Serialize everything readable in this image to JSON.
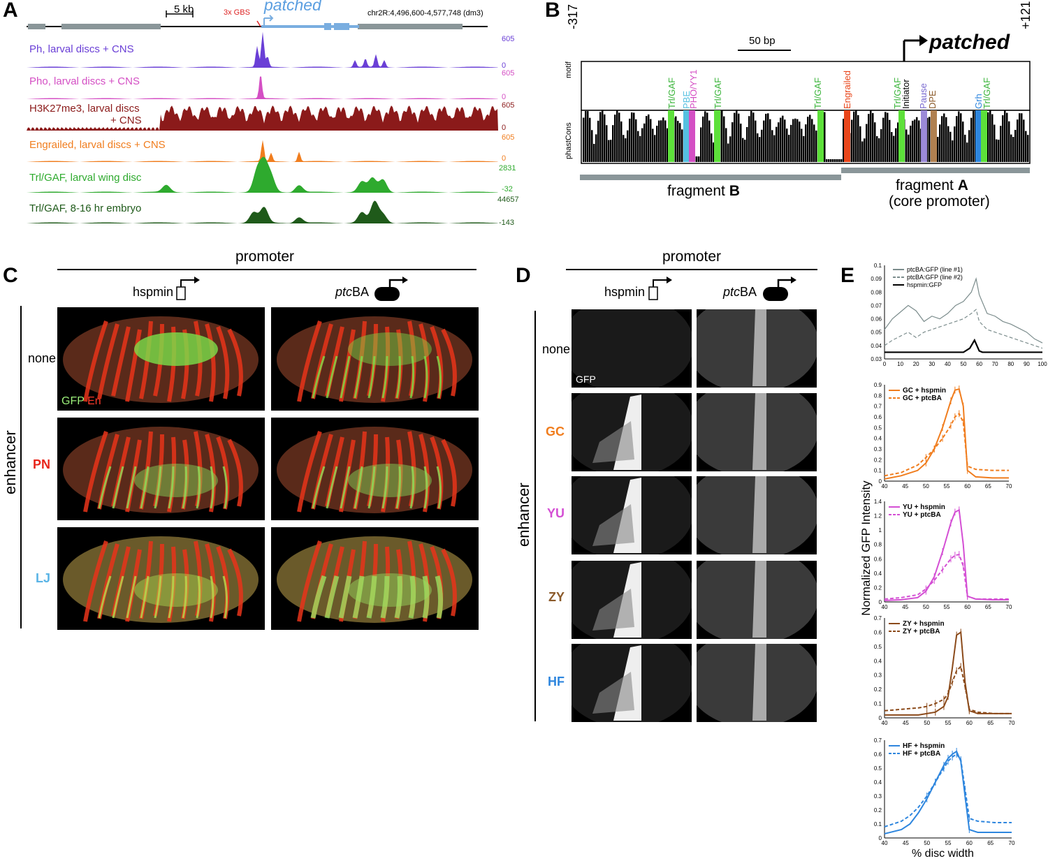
{
  "panelA": {
    "letter": "A",
    "scalebar": "5 kb",
    "gbs": "3x GBS",
    "gene": "patched",
    "coords": "chr2R:4,496,600-4,577,748 (dm3)",
    "tracks": [
      {
        "label": "Ph, larval discs + CNS",
        "color": "#6a3fd6",
        "max": "605",
        "min": "0"
      },
      {
        "label": "Pho, larval discs + CNS",
        "color": "#d44fc4",
        "max": "605",
        "min": "0"
      },
      {
        "label": "H3K27me3, larval discs",
        "label2": "+ CNS",
        "color": "#8b1a1a",
        "max": "605",
        "min": "0"
      },
      {
        "label": "Engrailed, larval discs + CNS",
        "color": "#f07d1e",
        "max": "605",
        "min": "0"
      },
      {
        "label": "Trl/GAF, larval wing disc",
        "color": "#2eaa2e",
        "max": "2831",
        "min": "-32"
      },
      {
        "label": "Trl/GAF, 8-16 hr embryo",
        "color": "#1f5a1a",
        "max": "44657",
        "min": "-143"
      }
    ]
  },
  "panelB": {
    "letter": "B",
    "left_coord": "-317",
    "right_coord": "+121",
    "scalebar": "50 bp",
    "gene": "patched",
    "row_motif": "motif",
    "row_phast": "phastCons",
    "motifs": [
      "Trl/GAF",
      "PBE",
      "PHO/YY1",
      "Trl/GAF",
      "Trl/GAF",
      "Engrailed",
      "Trl/GAF",
      "Initiator",
      "Pause",
      "DPE",
      "Grh",
      "Trl/GAF"
    ],
    "fragB": "fragment",
    "fragB_letter": "B",
    "fragA": "fragment",
    "fragA_letter": "A",
    "fragA_sub": "(core promoter)"
  },
  "panelC": {
    "letter": "C",
    "promoter": "promoter",
    "col1": "hspmin",
    "col2_italic": "ptc",
    "col2": "BA",
    "enhancer": "enhancer",
    "rows": [
      "none",
      "PN",
      "LJ"
    ],
    "legend_gfp": "GFP",
    "legend_en": "En"
  },
  "panelD": {
    "letter": "D",
    "promoter": "promoter",
    "col1": "hspmin",
    "col2_italic": "ptc",
    "col2": "BA",
    "enhancer": "enhancer",
    "rows": [
      "none",
      "GC",
      "YU",
      "ZY",
      "HF"
    ],
    "legend_gfp": "GFP"
  },
  "panelE": {
    "letter": "E",
    "ylabel": "Normalized GFP Intensity",
    "xlabel": "% disc width"
  },
  "chart_data": [
    {
      "type": "line",
      "xlim": [
        0,
        100
      ],
      "ylim": [
        0.03,
        0.1
      ],
      "xticks": [
        "0",
        "10",
        "20",
        "30",
        "40",
        "50",
        "60",
        "70",
        "80",
        "90",
        "100"
      ],
      "yticks": [
        "0.03",
        "0.04",
        "0.05",
        "0.06",
        "0.07",
        "0.08",
        "0.09",
        "0.1"
      ],
      "series": [
        {
          "name": "ptcBA:GFP (line #1)",
          "color": "#7b8c8c",
          "x": [
            0,
            5,
            10,
            15,
            20,
            25,
            30,
            35,
            40,
            45,
            50,
            55,
            58,
            60,
            65,
            70,
            75,
            80,
            85,
            90,
            95,
            100
          ],
          "y": [
            0.052,
            0.06,
            0.065,
            0.07,
            0.066,
            0.058,
            0.062,
            0.06,
            0.064,
            0.07,
            0.073,
            0.08,
            0.09,
            0.078,
            0.064,
            0.062,
            0.058,
            0.056,
            0.053,
            0.05,
            0.045,
            0.042
          ]
        },
        {
          "name": "ptcBA:GFP (line #2)",
          "color": "#7b8c8c",
          "dash": true,
          "x": [
            0,
            5,
            10,
            15,
            20,
            25,
            30,
            35,
            40,
            45,
            50,
            55,
            58,
            60,
            65,
            70,
            75,
            80,
            85,
            90,
            95,
            100
          ],
          "y": [
            0.04,
            0.044,
            0.047,
            0.05,
            0.046,
            0.05,
            0.052,
            0.054,
            0.056,
            0.058,
            0.06,
            0.064,
            0.067,
            0.058,
            0.052,
            0.05,
            0.048,
            0.046,
            0.044,
            0.042,
            0.04,
            0.038
          ]
        },
        {
          "name": "hspmin:GFP",
          "color": "#000000",
          "x": [
            0,
            10,
            20,
            30,
            40,
            50,
            54,
            57,
            60,
            62,
            70,
            80,
            90,
            100
          ],
          "y": [
            0.035,
            0.035,
            0.035,
            0.035,
            0.035,
            0.035,
            0.038,
            0.044,
            0.036,
            0.035,
            0.035,
            0.035,
            0.035,
            0.035
          ]
        }
      ]
    },
    {
      "type": "line",
      "xlim": [
        40,
        70
      ],
      "ylim": [
        0,
        0.9
      ],
      "xticks": [
        "40",
        "45",
        "50",
        "55",
        "60",
        "65",
        "70"
      ],
      "yticks": [
        "0",
        "0.1",
        "0.2",
        "0.3",
        "0.4",
        "0.5",
        "0.6",
        "0.7",
        "0.8",
        "0.9"
      ],
      "series": [
        {
          "name": "GC + hspmin",
          "color": "#f07d1e",
          "x": [
            40,
            44,
            48,
            50,
            52,
            54,
            56,
            57,
            58,
            59,
            60,
            62,
            66,
            70
          ],
          "y": [
            0.02,
            0.05,
            0.1,
            0.17,
            0.3,
            0.5,
            0.75,
            0.85,
            0.86,
            0.7,
            0.1,
            0.04,
            0.03,
            0.03
          ]
        },
        {
          "name": "GC + ptcBA",
          "color": "#f07d1e",
          "dash": true,
          "x": [
            40,
            44,
            48,
            50,
            52,
            54,
            56,
            57,
            58,
            59,
            60,
            62,
            66,
            70
          ],
          "y": [
            0.05,
            0.08,
            0.15,
            0.22,
            0.3,
            0.4,
            0.52,
            0.6,
            0.63,
            0.55,
            0.14,
            0.11,
            0.1,
            0.1
          ]
        }
      ]
    },
    {
      "type": "line",
      "xlim": [
        40,
        70
      ],
      "ylim": [
        0,
        1.4
      ],
      "xticks": [
        "40",
        "45",
        "50",
        "55",
        "60",
        "65",
        "70"
      ],
      "yticks": [
        "0",
        "0.2",
        "0.4",
        "0.6",
        "0.8",
        "1",
        "1.2",
        "1.4"
      ],
      "series": [
        {
          "name": "YU + hspmin",
          "color": "#d44fd4",
          "x": [
            40,
            44,
            48,
            50,
            52,
            54,
            56,
            57,
            58,
            59,
            60,
            62,
            66,
            70
          ],
          "y": [
            0.02,
            0.03,
            0.06,
            0.15,
            0.35,
            0.7,
            1.1,
            1.25,
            1.28,
            0.8,
            0.08,
            0.04,
            0.03,
            0.03
          ]
        },
        {
          "name": "YU + ptcBA",
          "color": "#d44fd4",
          "dash": true,
          "x": [
            40,
            44,
            48,
            50,
            52,
            54,
            56,
            57,
            58,
            59,
            60,
            62,
            66,
            70
          ],
          "y": [
            0.04,
            0.06,
            0.1,
            0.18,
            0.3,
            0.45,
            0.6,
            0.65,
            0.66,
            0.5,
            0.08,
            0.04,
            0.04,
            0.04
          ]
        }
      ]
    },
    {
      "type": "line",
      "xlim": [
        40,
        70
      ],
      "ylim": [
        0,
        0.7
      ],
      "xticks": [
        "40",
        "45",
        "50",
        "55",
        "60",
        "65",
        "70"
      ],
      "yticks": [
        "0",
        "0.1",
        "0.2",
        "0.3",
        "0.4",
        "0.5",
        "0.6",
        "0.7"
      ],
      "series": [
        {
          "name": "ZY + hspmin",
          "color": "#8b4a1a",
          "x": [
            40,
            44,
            48,
            50,
            52,
            54,
            55,
            56,
            57,
            58,
            59,
            60,
            62,
            66,
            70
          ],
          "y": [
            0.02,
            0.02,
            0.02,
            0.03,
            0.04,
            0.08,
            0.15,
            0.35,
            0.58,
            0.6,
            0.25,
            0.05,
            0.03,
            0.03,
            0.03
          ]
        },
        {
          "name": "ZY + ptcBA",
          "color": "#8b4a1a",
          "dash": true,
          "x": [
            40,
            44,
            48,
            50,
            52,
            54,
            55,
            56,
            57,
            58,
            59,
            60,
            62,
            66,
            70
          ],
          "y": [
            0.05,
            0.06,
            0.07,
            0.08,
            0.1,
            0.13,
            0.17,
            0.25,
            0.33,
            0.36,
            0.22,
            0.06,
            0.04,
            0.03,
            0.03
          ]
        }
      ]
    },
    {
      "type": "line",
      "xlim": [
        40,
        70
      ],
      "ylim": [
        0,
        0.7
      ],
      "xticks": [
        "40",
        "45",
        "50",
        "55",
        "60",
        "65",
        "70"
      ],
      "yticks": [
        "0",
        "0.1",
        "0.2",
        "0.3",
        "0.4",
        "0.5",
        "0.6",
        "0.7"
      ],
      "series": [
        {
          "name": "HF + hspmin",
          "color": "#2e86de",
          "x": [
            40,
            44,
            46,
            48,
            50,
            52,
            54,
            55,
            56,
            57,
            58,
            59,
            60,
            62,
            66,
            70
          ],
          "y": [
            0.03,
            0.06,
            0.1,
            0.18,
            0.28,
            0.4,
            0.52,
            0.57,
            0.6,
            0.62,
            0.55,
            0.3,
            0.06,
            0.04,
            0.04,
            0.04
          ]
        },
        {
          "name": "HF + ptcBA",
          "color": "#2e86de",
          "dash": true,
          "x": [
            40,
            44,
            46,
            48,
            50,
            52,
            54,
            55,
            56,
            57,
            58,
            59,
            60,
            62,
            66,
            70
          ],
          "y": [
            0.08,
            0.12,
            0.16,
            0.22,
            0.3,
            0.4,
            0.5,
            0.55,
            0.58,
            0.6,
            0.56,
            0.35,
            0.14,
            0.12,
            0.11,
            0.11
          ]
        }
      ]
    }
  ]
}
